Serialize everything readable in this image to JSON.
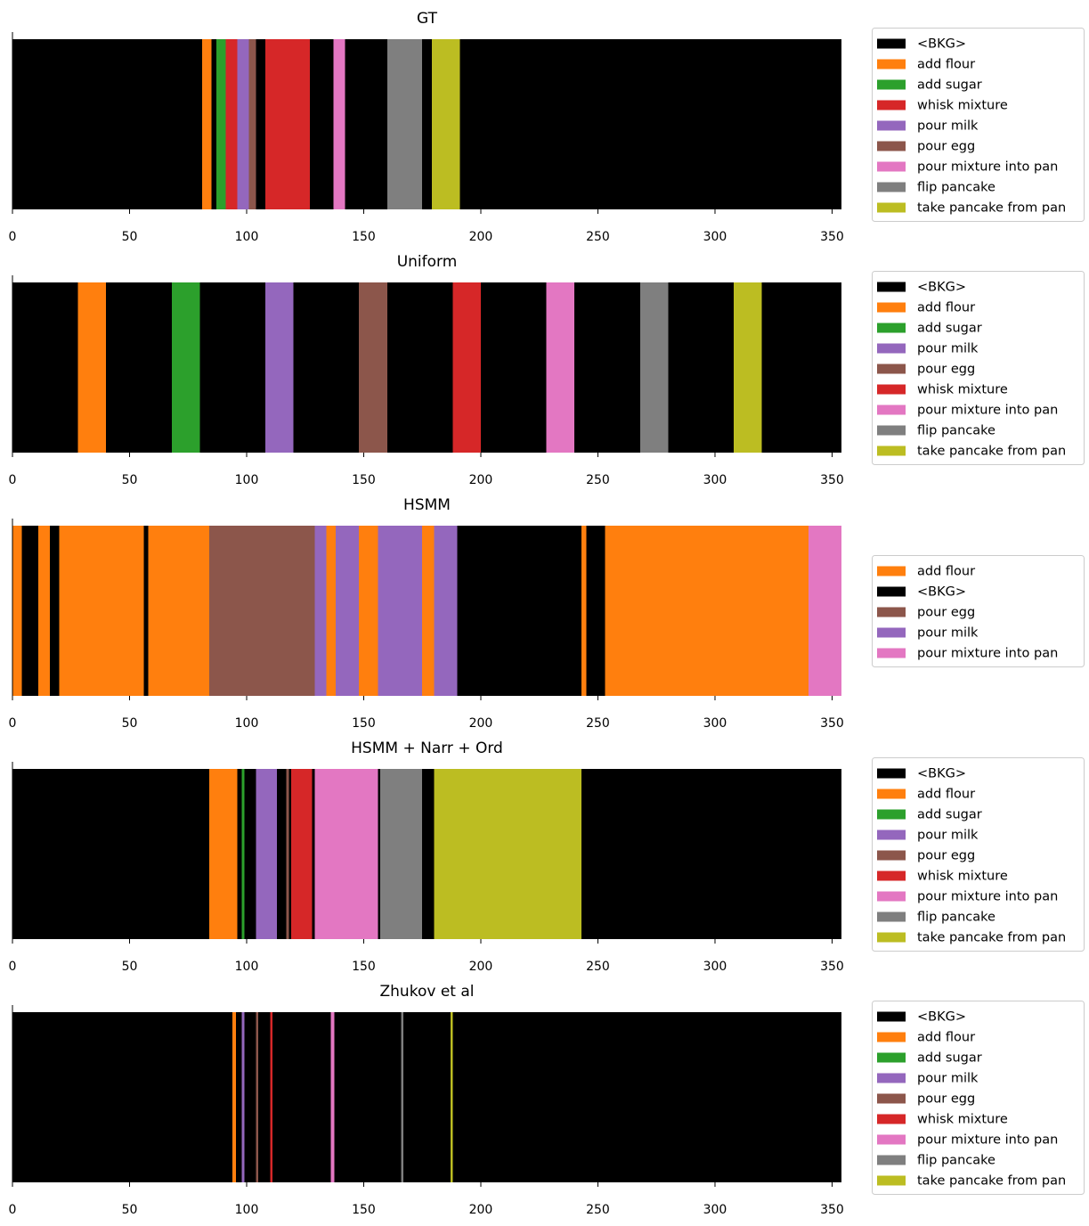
{
  "colors": {
    "<BKG>": "#000000",
    "add flour": "#ff7f0e",
    "add sugar": "#2ca02c",
    "whisk mixture": "#d62728",
    "pour milk": "#9467bd",
    "pour egg": "#8c564b",
    "pour mixture into pan": "#e377c2",
    "flip pancake": "#7f7f7f",
    "take pancake from pan": "#bcbd22"
  },
  "chart_data": [
    {
      "type": "bar",
      "title": "GT",
      "xlim": [
        0,
        354
      ],
      "xticks": [
        0,
        50,
        100,
        150,
        200,
        250,
        300,
        350
      ],
      "legend": [
        "<BKG>",
        "add flour",
        "add sugar",
        "whisk mixture",
        "pour milk",
        "pour egg",
        "pour mixture into pan",
        "flip pancake",
        "take pancake from pan"
      ],
      "segments": [
        {
          "label": "<BKG>",
          "start": 0,
          "end": 81
        },
        {
          "label": "add flour",
          "start": 81,
          "end": 85
        },
        {
          "label": "<BKG>",
          "start": 85,
          "end": 87
        },
        {
          "label": "add sugar",
          "start": 87,
          "end": 91
        },
        {
          "label": "whisk mixture",
          "start": 91,
          "end": 96
        },
        {
          "label": "pour milk",
          "start": 96,
          "end": 101
        },
        {
          "label": "pour egg",
          "start": 101,
          "end": 104
        },
        {
          "label": "<BKG>",
          "start": 104,
          "end": 108
        },
        {
          "label": "whisk mixture",
          "start": 108,
          "end": 127
        },
        {
          "label": "<BKG>",
          "start": 127,
          "end": 137
        },
        {
          "label": "pour mixture into pan",
          "start": 137,
          "end": 142
        },
        {
          "label": "<BKG>",
          "start": 142,
          "end": 160
        },
        {
          "label": "flip pancake",
          "start": 160,
          "end": 175
        },
        {
          "label": "<BKG>",
          "start": 175,
          "end": 179
        },
        {
          "label": "take pancake from pan",
          "start": 179,
          "end": 191
        },
        {
          "label": "<BKG>",
          "start": 191,
          "end": 354
        }
      ]
    },
    {
      "type": "bar",
      "title": "Uniform",
      "xlim": [
        0,
        354
      ],
      "xticks": [
        0,
        50,
        100,
        150,
        200,
        250,
        300,
        350
      ],
      "legend": [
        "<BKG>",
        "add flour",
        "add sugar",
        "pour milk",
        "pour egg",
        "whisk mixture",
        "pour mixture into pan",
        "flip pancake",
        "take pancake from pan"
      ],
      "segments": [
        {
          "label": "<BKG>",
          "start": 0,
          "end": 28
        },
        {
          "label": "add flour",
          "start": 28,
          "end": 40
        },
        {
          "label": "<BKG>",
          "start": 40,
          "end": 68
        },
        {
          "label": "add sugar",
          "start": 68,
          "end": 80
        },
        {
          "label": "<BKG>",
          "start": 80,
          "end": 108
        },
        {
          "label": "pour milk",
          "start": 108,
          "end": 120
        },
        {
          "label": "<BKG>",
          "start": 120,
          "end": 148
        },
        {
          "label": "pour egg",
          "start": 148,
          "end": 160
        },
        {
          "label": "<BKG>",
          "start": 160,
          "end": 188
        },
        {
          "label": "whisk mixture",
          "start": 188,
          "end": 200
        },
        {
          "label": "<BKG>",
          "start": 200,
          "end": 228
        },
        {
          "label": "pour mixture into pan",
          "start": 228,
          "end": 240
        },
        {
          "label": "<BKG>",
          "start": 240,
          "end": 268
        },
        {
          "label": "flip pancake",
          "start": 268,
          "end": 280
        },
        {
          "label": "<BKG>",
          "start": 280,
          "end": 308
        },
        {
          "label": "take pancake from pan",
          "start": 308,
          "end": 320
        },
        {
          "label": "<BKG>",
          "start": 320,
          "end": 354
        }
      ]
    },
    {
      "type": "bar",
      "title": "HSMM",
      "xlim": [
        0,
        354
      ],
      "xticks": [
        0,
        50,
        100,
        150,
        200,
        250,
        300,
        350
      ],
      "legend": [
        "add flour",
        "<BKG>",
        "pour egg",
        "pour milk",
        "pour mixture into pan"
      ],
      "segments": [
        {
          "label": "add flour",
          "start": 0,
          "end": 4
        },
        {
          "label": "<BKG>",
          "start": 4,
          "end": 11
        },
        {
          "label": "add flour",
          "start": 11,
          "end": 16
        },
        {
          "label": "<BKG>",
          "start": 16,
          "end": 20
        },
        {
          "label": "add flour",
          "start": 20,
          "end": 56
        },
        {
          "label": "<BKG>",
          "start": 56,
          "end": 58
        },
        {
          "label": "add flour",
          "start": 58,
          "end": 84
        },
        {
          "label": "pour egg",
          "start": 84,
          "end": 129
        },
        {
          "label": "pour milk",
          "start": 129,
          "end": 134
        },
        {
          "label": "add flour",
          "start": 134,
          "end": 138
        },
        {
          "label": "pour milk",
          "start": 138,
          "end": 148
        },
        {
          "label": "add flour",
          "start": 148,
          "end": 156
        },
        {
          "label": "pour milk",
          "start": 156,
          "end": 175
        },
        {
          "label": "add flour",
          "start": 175,
          "end": 180
        },
        {
          "label": "pour milk",
          "start": 180,
          "end": 190
        },
        {
          "label": "<BKG>",
          "start": 190,
          "end": 243
        },
        {
          "label": "add flour",
          "start": 243,
          "end": 245
        },
        {
          "label": "<BKG>",
          "start": 245,
          "end": 253
        },
        {
          "label": "add flour",
          "start": 253,
          "end": 340
        },
        {
          "label": "pour mixture into pan",
          "start": 340,
          "end": 354
        }
      ]
    },
    {
      "type": "bar",
      "title": "HSMM + Narr + Ord",
      "xlim": [
        0,
        354
      ],
      "xticks": [
        0,
        50,
        100,
        150,
        200,
        250,
        300,
        350
      ],
      "legend": [
        "<BKG>",
        "add flour",
        "add sugar",
        "pour milk",
        "pour egg",
        "whisk mixture",
        "pour mixture into pan",
        "flip pancake",
        "take pancake from pan"
      ],
      "segments": [
        {
          "label": "<BKG>",
          "start": 0,
          "end": 84
        },
        {
          "label": "add flour",
          "start": 84,
          "end": 96
        },
        {
          "label": "<BKG>",
          "start": 96,
          "end": 98
        },
        {
          "label": "add sugar",
          "start": 98,
          "end": 99
        },
        {
          "label": "<BKG>",
          "start": 99,
          "end": 104
        },
        {
          "label": "pour milk",
          "start": 104,
          "end": 113
        },
        {
          "label": "<BKG>",
          "start": 113,
          "end": 117
        },
        {
          "label": "pour egg",
          "start": 117,
          "end": 118
        },
        {
          "label": "<BKG>",
          "start": 118,
          "end": 119
        },
        {
          "label": "whisk mixture",
          "start": 119,
          "end": 128
        },
        {
          "label": "<BKG>",
          "start": 128,
          "end": 129
        },
        {
          "label": "pour mixture into pan",
          "start": 129,
          "end": 156
        },
        {
          "label": "<BKG>",
          "start": 156,
          "end": 157
        },
        {
          "label": "flip pancake",
          "start": 157,
          "end": 175
        },
        {
          "label": "<BKG>",
          "start": 175,
          "end": 180
        },
        {
          "label": "take pancake from pan",
          "start": 180,
          "end": 243
        },
        {
          "label": "<BKG>",
          "start": 243,
          "end": 354
        }
      ]
    },
    {
      "type": "bar",
      "title": "Zhukov et al",
      "xlim": [
        0,
        354
      ],
      "xticks": [
        0,
        50,
        100,
        150,
        200,
        250,
        300,
        350
      ],
      "legend": [
        "<BKG>",
        "add flour",
        "add sugar",
        "pour milk",
        "pour egg",
        "whisk mixture",
        "pour mixture into pan",
        "flip pancake",
        "take pancake from pan"
      ],
      "segments": [
        {
          "label": "<BKG>",
          "start": 0,
          "end": 94
        },
        {
          "label": "add flour",
          "start": 94,
          "end": 95.5
        },
        {
          "label": "<BKG>",
          "start": 95.5,
          "end": 98
        },
        {
          "label": "pour milk",
          "start": 98,
          "end": 99
        },
        {
          "label": "<BKG>",
          "start": 99,
          "end": 104
        },
        {
          "label": "pour egg",
          "start": 104,
          "end": 105
        },
        {
          "label": "<BKG>",
          "start": 105,
          "end": 110
        },
        {
          "label": "whisk mixture",
          "start": 110,
          "end": 111
        },
        {
          "label": "<BKG>",
          "start": 111,
          "end": 136
        },
        {
          "label": "pour mixture into pan",
          "start": 136,
          "end": 137.5
        },
        {
          "label": "<BKG>",
          "start": 137.5,
          "end": 166
        },
        {
          "label": "flip pancake",
          "start": 166,
          "end": 167
        },
        {
          "label": "<BKG>",
          "start": 167,
          "end": 187
        },
        {
          "label": "take pancake from pan",
          "start": 187,
          "end": 188
        },
        {
          "label": "<BKG>",
          "start": 188,
          "end": 354
        }
      ]
    }
  ]
}
